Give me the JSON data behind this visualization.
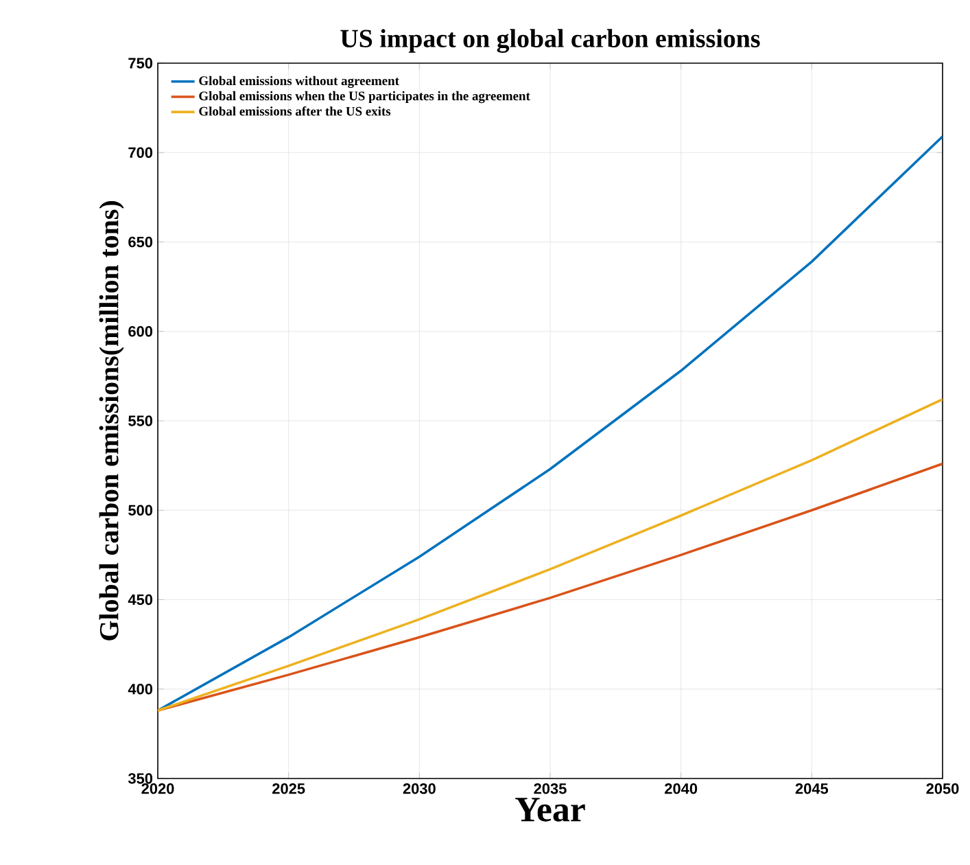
{
  "chart_data": {
    "type": "line",
    "title": "US impact on global carbon emissions",
    "xlabel": "Year",
    "ylabel": "Global carbon emissions(million tons)",
    "x": [
      2020,
      2025,
      2030,
      2035,
      2040,
      2045,
      2050
    ],
    "series": [
      {
        "name": "Global emissions without agreement",
        "color": "#0072bd",
        "values": [
          388,
          429,
          474,
          523,
          578,
          639,
          709
        ]
      },
      {
        "name": "Global emissions when the US participates in the agreement",
        "color": "#d95319",
        "values": [
          388,
          408,
          429,
          451,
          475,
          500,
          526
        ]
      },
      {
        "name": "Global emissions after the US exits",
        "color": "#edb120",
        "values": [
          388,
          413,
          439,
          467,
          497,
          528,
          562
        ]
      }
    ],
    "xlim": [
      2020,
      2050
    ],
    "xticks": [
      2020,
      2025,
      2030,
      2035,
      2040,
      2045,
      2050
    ],
    "ylim": [
      350,
      750
    ],
    "yticks": [
      350,
      400,
      450,
      500,
      550,
      600,
      650,
      700,
      750
    ],
    "grid": true,
    "legend": "top left",
    "marker": "none",
    "line_style": "solid"
  }
}
